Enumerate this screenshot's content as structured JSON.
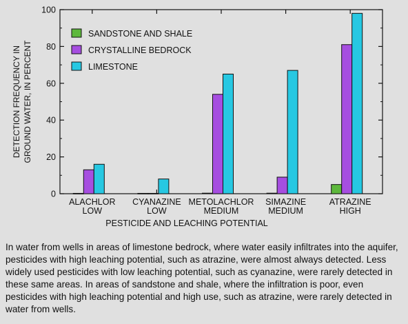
{
  "chart_data": {
    "type": "bar",
    "categories": [
      [
        "ALACHLOR",
        "LOW"
      ],
      [
        "CYANAZINE",
        "LOW"
      ],
      [
        "METOLACHLOR",
        "MEDIUM"
      ],
      [
        "SIMAZINE",
        "MEDIUM"
      ],
      [
        "ATRAZINE",
        "HIGH"
      ]
    ],
    "series": [
      {
        "name": "SANDSTONE AND SHALE",
        "color": "#5db83c",
        "values": [
          0.2,
          0.2,
          0.3,
          0.3,
          5
        ]
      },
      {
        "name": "CRYSTALLINE BEDROCK",
        "color": "#a64ee0",
        "values": [
          13,
          0.2,
          54,
          9,
          81
        ]
      },
      {
        "name": "LIMESTONE",
        "color": "#27c8e2",
        "values": [
          16,
          8,
          65,
          67,
          98
        ]
      }
    ],
    "xlabel": "PESTICIDE AND LEACHING POTENTIAL",
    "ylabel": [
      "DETECTION FREQUENCY IN",
      "GROUND WATER, IN PERCENT"
    ],
    "ylim": [
      0,
      100
    ],
    "yticks": [
      0,
      20,
      40,
      60,
      80,
      100
    ],
    "grid": false,
    "legend_position": "top-left"
  },
  "caption": "In water from wells in areas of limestone bedrock, where water easily infiltrates into the aquifer, pesticides with high leaching potential, such as atrazine, were almost always detected. Less widely used pesticides with low leaching potential, such as cyanazine, were rarely detected in these same areas. In areas of sandstone and shale, where the infiltration is poor, even pesticides with high leaching potential and high use, such as atrazine, were rarely detected in water from wells."
}
